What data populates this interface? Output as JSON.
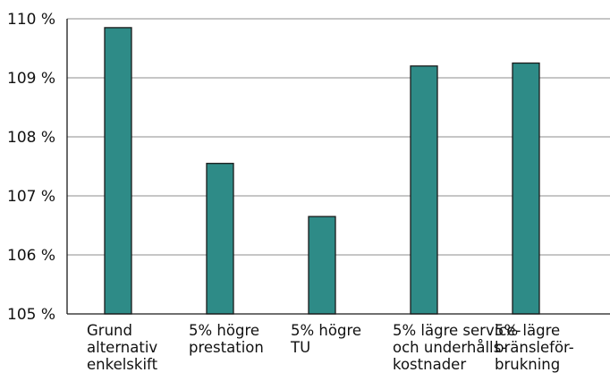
{
  "chart_data": {
    "type": "bar",
    "categories": [
      "Grund alternativ enkelskift",
      "5% högre prestation",
      "5% högre TU",
      "5% lägre service- och underhålls- kostnader",
      "5% lägre bränsleför- brukning"
    ],
    "category_lines": [
      [
        "Grund",
        "alternativ",
        "enkelskift"
      ],
      [
        "5% högre",
        "prestation"
      ],
      [
        "5% högre",
        "TU"
      ],
      [
        "5% lägre service-",
        "och underhålls-",
        "kostnader"
      ],
      [
        "5% lägre",
        "bränsleför-",
        "brukning"
      ]
    ],
    "values": [
      109.85,
      107.55,
      106.65,
      109.2,
      109.25
    ],
    "ylim": [
      105,
      110
    ],
    "yticks": [
      105,
      106,
      107,
      108,
      109,
      110
    ],
    "ytick_labels": [
      "105 %",
      "106 %",
      "107 %",
      "108 %",
      "109 %",
      "110 %"
    ],
    "title": "",
    "xlabel": "",
    "ylabel": "",
    "grid": true,
    "colors": {
      "bar_fill": "#2e8b87",
      "bar_stroke": "#1a1a1a",
      "grid": "#8c8c8c",
      "axis": "#1a1a1a"
    }
  }
}
